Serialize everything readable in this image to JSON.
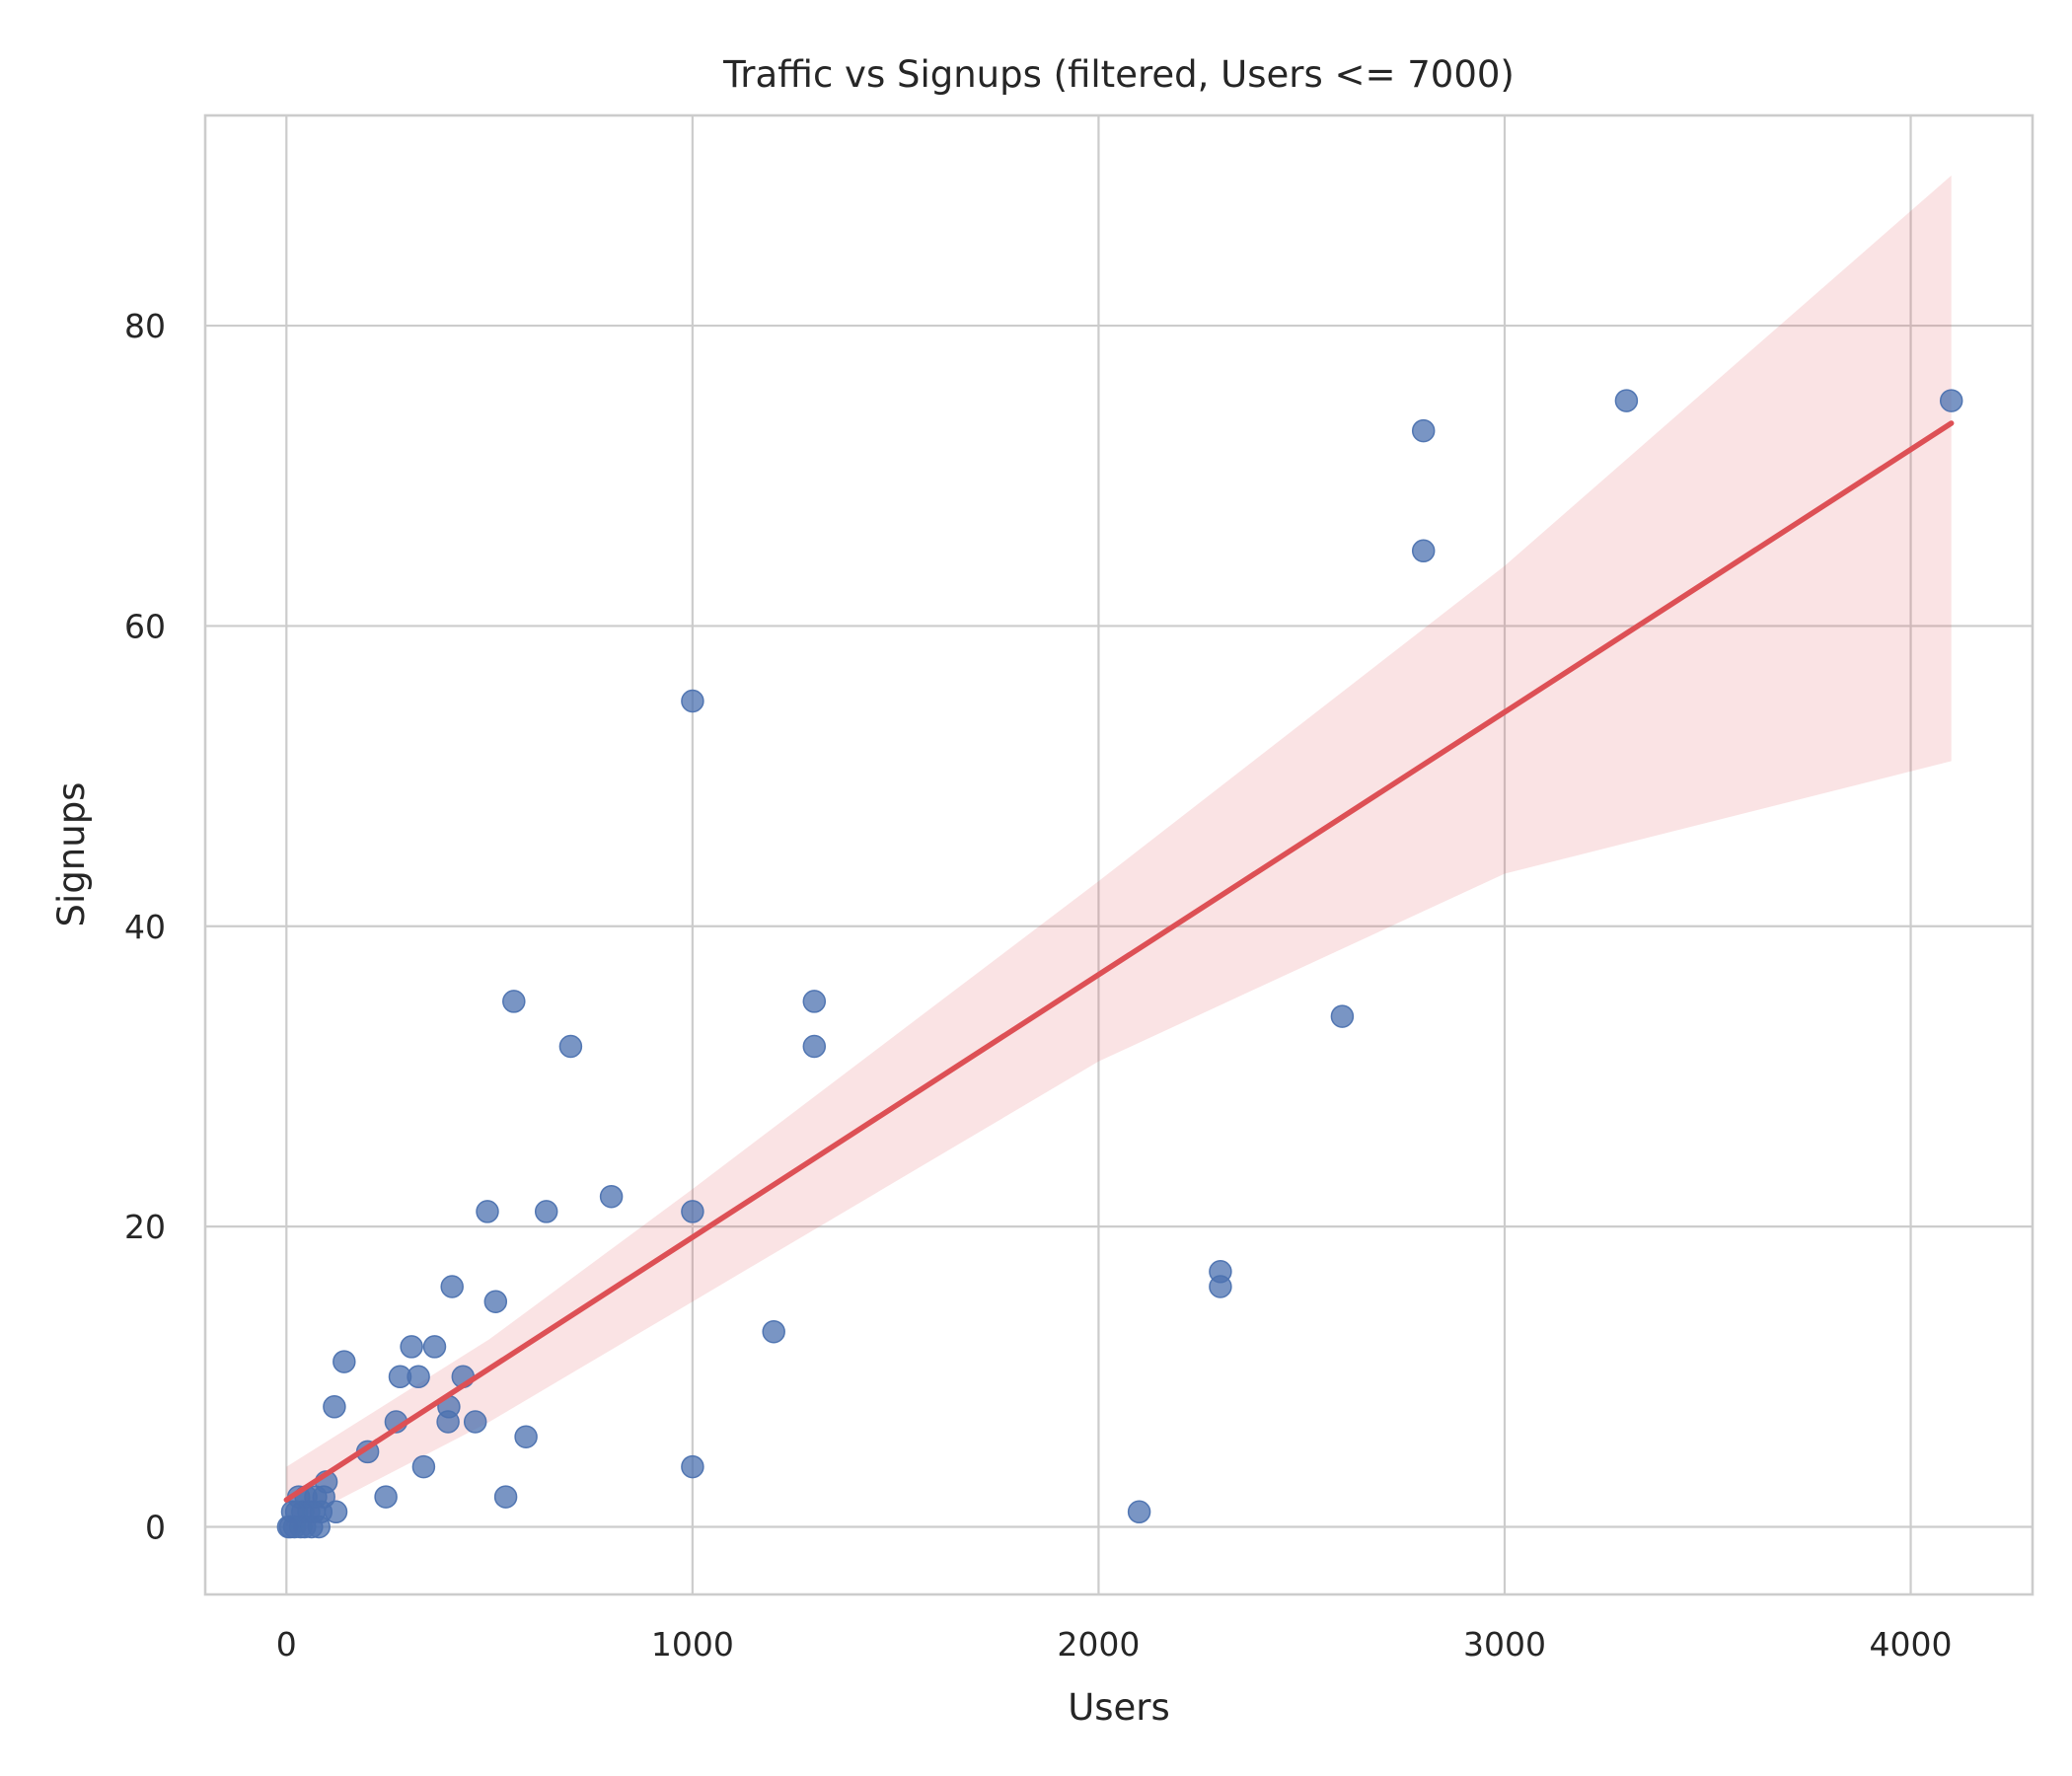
{
  "chart_data": {
    "type": "scatter",
    "title": "Traffic vs Signups (filtered, Users <= 7000)",
    "xlabel": "Users",
    "ylabel": "Signups",
    "xlim": [
      -200,
      4300
    ],
    "ylim": [
      -4.5,
      94
    ],
    "xticks": [
      0,
      1000,
      2000,
      3000,
      4000
    ],
    "yticks": [
      0,
      20,
      40,
      60,
      80
    ],
    "grid": true,
    "colors": {
      "points": "#4c72b0",
      "fit": "#dd5055"
    },
    "series": [
      {
        "points": [
          [
            4100,
            75
          ],
          [
            3300,
            75
          ],
          [
            2800,
            73
          ],
          [
            2800,
            65
          ],
          [
            2600,
            34
          ],
          [
            2300,
            17
          ],
          [
            2300,
            16
          ],
          [
            2100,
            1
          ],
          [
            1300,
            35
          ],
          [
            1300,
            32
          ],
          [
            1200,
            13
          ],
          [
            1000,
            55
          ],
          [
            1000,
            21
          ],
          [
            1000,
            4
          ],
          [
            800,
            22
          ],
          [
            700,
            32
          ],
          [
            640,
            21
          ],
          [
            590,
            6
          ],
          [
            560,
            35
          ],
          [
            540,
            2
          ],
          [
            515,
            15
          ],
          [
            495,
            21
          ],
          [
            465,
            7
          ],
          [
            435,
            10
          ],
          [
            408,
            16
          ],
          [
            400,
            8
          ],
          [
            398,
            7
          ],
          [
            365,
            12
          ],
          [
            338,
            4
          ],
          [
            325,
            10
          ],
          [
            308,
            12
          ],
          [
            280,
            10
          ],
          [
            270,
            7
          ],
          [
            245,
            2
          ],
          [
            200,
            5
          ],
          [
            142,
            11
          ],
          [
            118,
            8
          ],
          [
            122,
            1
          ],
          [
            98,
            3
          ],
          [
            92,
            2
          ],
          [
            85,
            1
          ],
          [
            80,
            0
          ],
          [
            72,
            2
          ],
          [
            68,
            1
          ],
          [
            62,
            0
          ],
          [
            55,
            1
          ],
          [
            48,
            2
          ],
          [
            45,
            0
          ],
          [
            40,
            1
          ],
          [
            35,
            0
          ],
          [
            30,
            2
          ],
          [
            25,
            1
          ],
          [
            20,
            0
          ],
          [
            15,
            1
          ],
          [
            10,
            0
          ],
          [
            5,
            0
          ]
        ]
      }
    ],
    "regression": {
      "x": [
        0,
        4100
      ],
      "y": [
        1.8,
        73.5
      ],
      "ci_upper": [
        [
          0,
          4
        ],
        [
          500,
          12.5
        ],
        [
          1000,
          22.5
        ],
        [
          2000,
          43
        ],
        [
          3000,
          64
        ],
        [
          4100,
          90
        ]
      ],
      "ci_lower": [
        [
          0,
          0
        ],
        [
          500,
          7
        ],
        [
          1000,
          15
        ],
        [
          2000,
          31
        ],
        [
          3000,
          43.5
        ],
        [
          4100,
          51
        ]
      ]
    }
  }
}
